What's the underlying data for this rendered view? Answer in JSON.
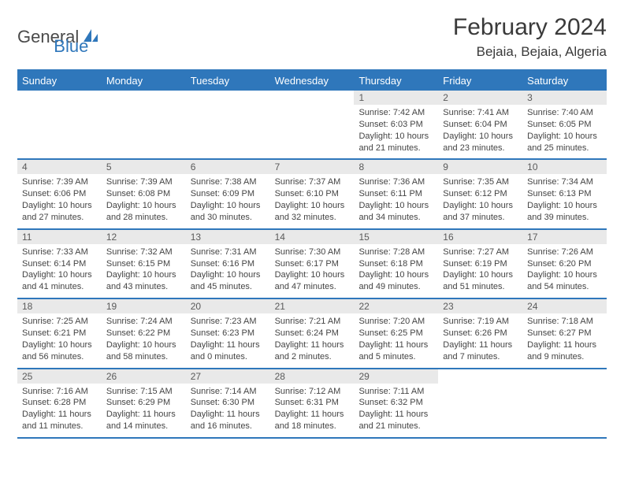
{
  "logo": {
    "text_general": "General",
    "text_blue": "Blue"
  },
  "header": {
    "month_title": "February 2024",
    "location": "Bejaia, Bejaia, Algeria"
  },
  "colors": {
    "brand_blue": "#2f77bb",
    "daynum_bg": "#e9e9e9",
    "text_dark": "#3a3a3a"
  },
  "days_of_week": [
    "Sunday",
    "Monday",
    "Tuesday",
    "Wednesday",
    "Thursday",
    "Friday",
    "Saturday"
  ],
  "weeks": [
    [
      {
        "n": "",
        "sunrise": "",
        "sunset": "",
        "daylight": ""
      },
      {
        "n": "",
        "sunrise": "",
        "sunset": "",
        "daylight": ""
      },
      {
        "n": "",
        "sunrise": "",
        "sunset": "",
        "daylight": ""
      },
      {
        "n": "",
        "sunrise": "",
        "sunset": "",
        "daylight": ""
      },
      {
        "n": "1",
        "sunrise": "Sunrise: 7:42 AM",
        "sunset": "Sunset: 6:03 PM",
        "daylight": "Daylight: 10 hours and 21 minutes."
      },
      {
        "n": "2",
        "sunrise": "Sunrise: 7:41 AM",
        "sunset": "Sunset: 6:04 PM",
        "daylight": "Daylight: 10 hours and 23 minutes."
      },
      {
        "n": "3",
        "sunrise": "Sunrise: 7:40 AM",
        "sunset": "Sunset: 6:05 PM",
        "daylight": "Daylight: 10 hours and 25 minutes."
      }
    ],
    [
      {
        "n": "4",
        "sunrise": "Sunrise: 7:39 AM",
        "sunset": "Sunset: 6:06 PM",
        "daylight": "Daylight: 10 hours and 27 minutes."
      },
      {
        "n": "5",
        "sunrise": "Sunrise: 7:39 AM",
        "sunset": "Sunset: 6:08 PM",
        "daylight": "Daylight: 10 hours and 28 minutes."
      },
      {
        "n": "6",
        "sunrise": "Sunrise: 7:38 AM",
        "sunset": "Sunset: 6:09 PM",
        "daylight": "Daylight: 10 hours and 30 minutes."
      },
      {
        "n": "7",
        "sunrise": "Sunrise: 7:37 AM",
        "sunset": "Sunset: 6:10 PM",
        "daylight": "Daylight: 10 hours and 32 minutes."
      },
      {
        "n": "8",
        "sunrise": "Sunrise: 7:36 AM",
        "sunset": "Sunset: 6:11 PM",
        "daylight": "Daylight: 10 hours and 34 minutes."
      },
      {
        "n": "9",
        "sunrise": "Sunrise: 7:35 AM",
        "sunset": "Sunset: 6:12 PM",
        "daylight": "Daylight: 10 hours and 37 minutes."
      },
      {
        "n": "10",
        "sunrise": "Sunrise: 7:34 AM",
        "sunset": "Sunset: 6:13 PM",
        "daylight": "Daylight: 10 hours and 39 minutes."
      }
    ],
    [
      {
        "n": "11",
        "sunrise": "Sunrise: 7:33 AM",
        "sunset": "Sunset: 6:14 PM",
        "daylight": "Daylight: 10 hours and 41 minutes."
      },
      {
        "n": "12",
        "sunrise": "Sunrise: 7:32 AM",
        "sunset": "Sunset: 6:15 PM",
        "daylight": "Daylight: 10 hours and 43 minutes."
      },
      {
        "n": "13",
        "sunrise": "Sunrise: 7:31 AM",
        "sunset": "Sunset: 6:16 PM",
        "daylight": "Daylight: 10 hours and 45 minutes."
      },
      {
        "n": "14",
        "sunrise": "Sunrise: 7:30 AM",
        "sunset": "Sunset: 6:17 PM",
        "daylight": "Daylight: 10 hours and 47 minutes."
      },
      {
        "n": "15",
        "sunrise": "Sunrise: 7:28 AM",
        "sunset": "Sunset: 6:18 PM",
        "daylight": "Daylight: 10 hours and 49 minutes."
      },
      {
        "n": "16",
        "sunrise": "Sunrise: 7:27 AM",
        "sunset": "Sunset: 6:19 PM",
        "daylight": "Daylight: 10 hours and 51 minutes."
      },
      {
        "n": "17",
        "sunrise": "Sunrise: 7:26 AM",
        "sunset": "Sunset: 6:20 PM",
        "daylight": "Daylight: 10 hours and 54 minutes."
      }
    ],
    [
      {
        "n": "18",
        "sunrise": "Sunrise: 7:25 AM",
        "sunset": "Sunset: 6:21 PM",
        "daylight": "Daylight: 10 hours and 56 minutes."
      },
      {
        "n": "19",
        "sunrise": "Sunrise: 7:24 AM",
        "sunset": "Sunset: 6:22 PM",
        "daylight": "Daylight: 10 hours and 58 minutes."
      },
      {
        "n": "20",
        "sunrise": "Sunrise: 7:23 AM",
        "sunset": "Sunset: 6:23 PM",
        "daylight": "Daylight: 11 hours and 0 minutes."
      },
      {
        "n": "21",
        "sunrise": "Sunrise: 7:21 AM",
        "sunset": "Sunset: 6:24 PM",
        "daylight": "Daylight: 11 hours and 2 minutes."
      },
      {
        "n": "22",
        "sunrise": "Sunrise: 7:20 AM",
        "sunset": "Sunset: 6:25 PM",
        "daylight": "Daylight: 11 hours and 5 minutes."
      },
      {
        "n": "23",
        "sunrise": "Sunrise: 7:19 AM",
        "sunset": "Sunset: 6:26 PM",
        "daylight": "Daylight: 11 hours and 7 minutes."
      },
      {
        "n": "24",
        "sunrise": "Sunrise: 7:18 AM",
        "sunset": "Sunset: 6:27 PM",
        "daylight": "Daylight: 11 hours and 9 minutes."
      }
    ],
    [
      {
        "n": "25",
        "sunrise": "Sunrise: 7:16 AM",
        "sunset": "Sunset: 6:28 PM",
        "daylight": "Daylight: 11 hours and 11 minutes."
      },
      {
        "n": "26",
        "sunrise": "Sunrise: 7:15 AM",
        "sunset": "Sunset: 6:29 PM",
        "daylight": "Daylight: 11 hours and 14 minutes."
      },
      {
        "n": "27",
        "sunrise": "Sunrise: 7:14 AM",
        "sunset": "Sunset: 6:30 PM",
        "daylight": "Daylight: 11 hours and 16 minutes."
      },
      {
        "n": "28",
        "sunrise": "Sunrise: 7:12 AM",
        "sunset": "Sunset: 6:31 PM",
        "daylight": "Daylight: 11 hours and 18 minutes."
      },
      {
        "n": "29",
        "sunrise": "Sunrise: 7:11 AM",
        "sunset": "Sunset: 6:32 PM",
        "daylight": "Daylight: 11 hours and 21 minutes."
      },
      {
        "n": "",
        "sunrise": "",
        "sunset": "",
        "daylight": ""
      },
      {
        "n": "",
        "sunrise": "",
        "sunset": "",
        "daylight": ""
      }
    ]
  ]
}
